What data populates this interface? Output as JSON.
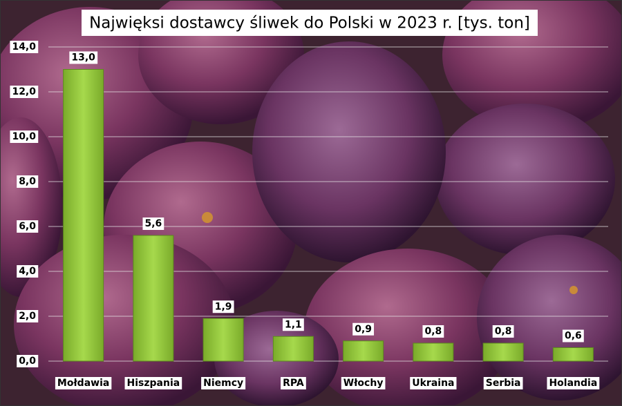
{
  "chart_data": {
    "type": "bar",
    "title": "Najwięksi dostawcy śliwek do Polski w 2023 r. [tys. ton]",
    "categories": [
      "Mołdawia",
      "Hiszpania",
      "Niemcy",
      "RPA",
      "Włochy",
      "Ukraina",
      "Serbia",
      "Holandia"
    ],
    "values": [
      13.0,
      5.6,
      1.9,
      1.1,
      0.9,
      0.8,
      0.8,
      0.6
    ],
    "value_labels": [
      "13,0",
      "5,6",
      "1,9",
      "1,1",
      "0,9",
      "0,8",
      "0,8",
      "0,6"
    ],
    "color": "#92c83e",
    "ylim": [
      0,
      14
    ],
    "yticks": [
      {
        "value": 0,
        "label": "0,0"
      },
      {
        "value": 2,
        "label": "2,0"
      },
      {
        "value": 4,
        "label": "4,0"
      },
      {
        "value": 6,
        "label": "6,0"
      },
      {
        "value": 8,
        "label": "8,0"
      },
      {
        "value": 10,
        "label": "10,0"
      },
      {
        "value": 12,
        "label": "12,0"
      },
      {
        "value": 14,
        "label": "14,0"
      }
    ],
    "grid": true
  }
}
